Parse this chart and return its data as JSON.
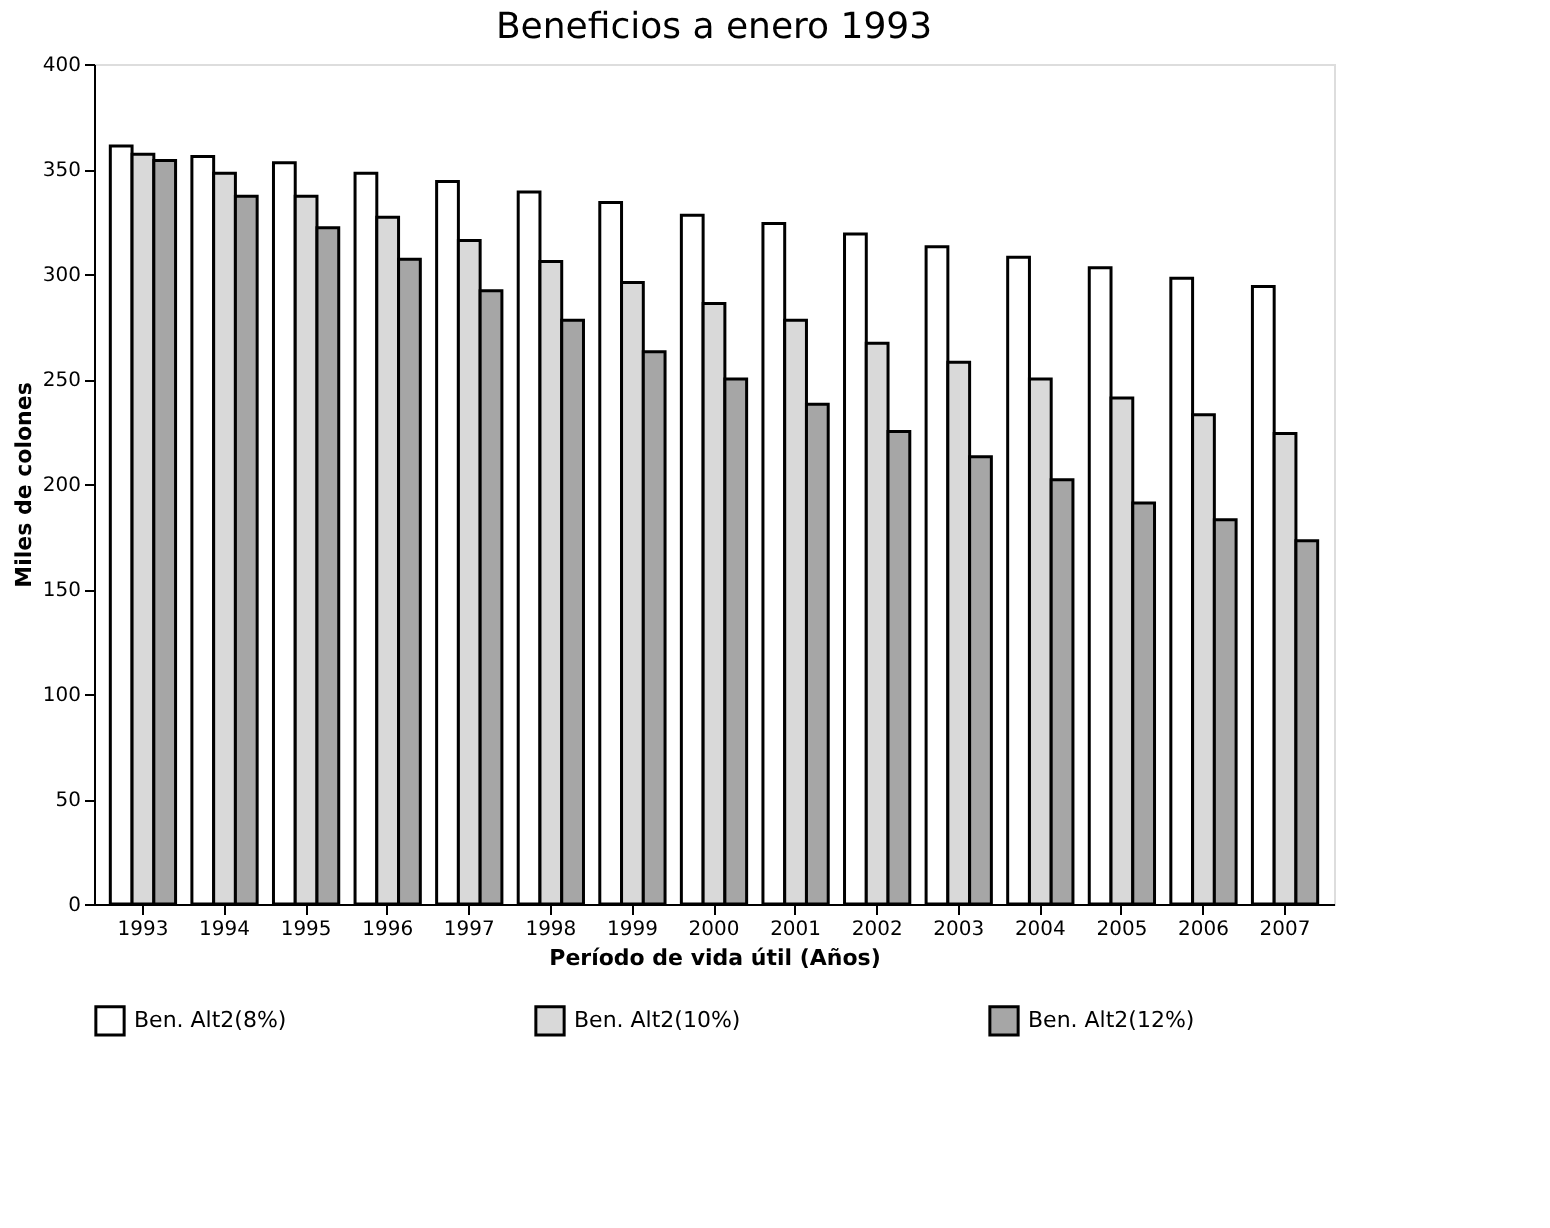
{
  "chart_data": {
    "type": "bar",
    "title": "Beneficios a enero 1993",
    "xlabel": "Período de vida útil (Años)",
    "ylabel": "Miles de colones",
    "categories": [
      "1993",
      "1994",
      "1995",
      "1996",
      "1997",
      "1998",
      "1999",
      "2000",
      "2001",
      "2002",
      "2003",
      "2004",
      "2005",
      "2006",
      "2007"
    ],
    "series": [
      {
        "name": "Ben. Alt2(8%)",
        "color": "#ffffff",
        "values": [
          361,
          356,
          353,
          348,
          344,
          339,
          334,
          328,
          324,
          319,
          313,
          308,
          303,
          298,
          294
        ]
      },
      {
        "name": "Ben. Alt2(10%)",
        "color": "#d9d9d9",
        "values": [
          357,
          348,
          337,
          327,
          316,
          306,
          296,
          286,
          278,
          267,
          258,
          250,
          241,
          233,
          224
        ]
      },
      {
        "name": "Ben. Alt2(12%)",
        "color": "#a6a6a6",
        "values": [
          354,
          337,
          322,
          307,
          292,
          278,
          263,
          250,
          238,
          225,
          213,
          202,
          191,
          183,
          173
        ]
      }
    ],
    "ylim": [
      0,
      400
    ],
    "yticks": [
      0,
      50,
      100,
      150,
      200,
      250,
      300,
      350,
      400
    ],
    "grid": false,
    "legend": "bottom"
  }
}
